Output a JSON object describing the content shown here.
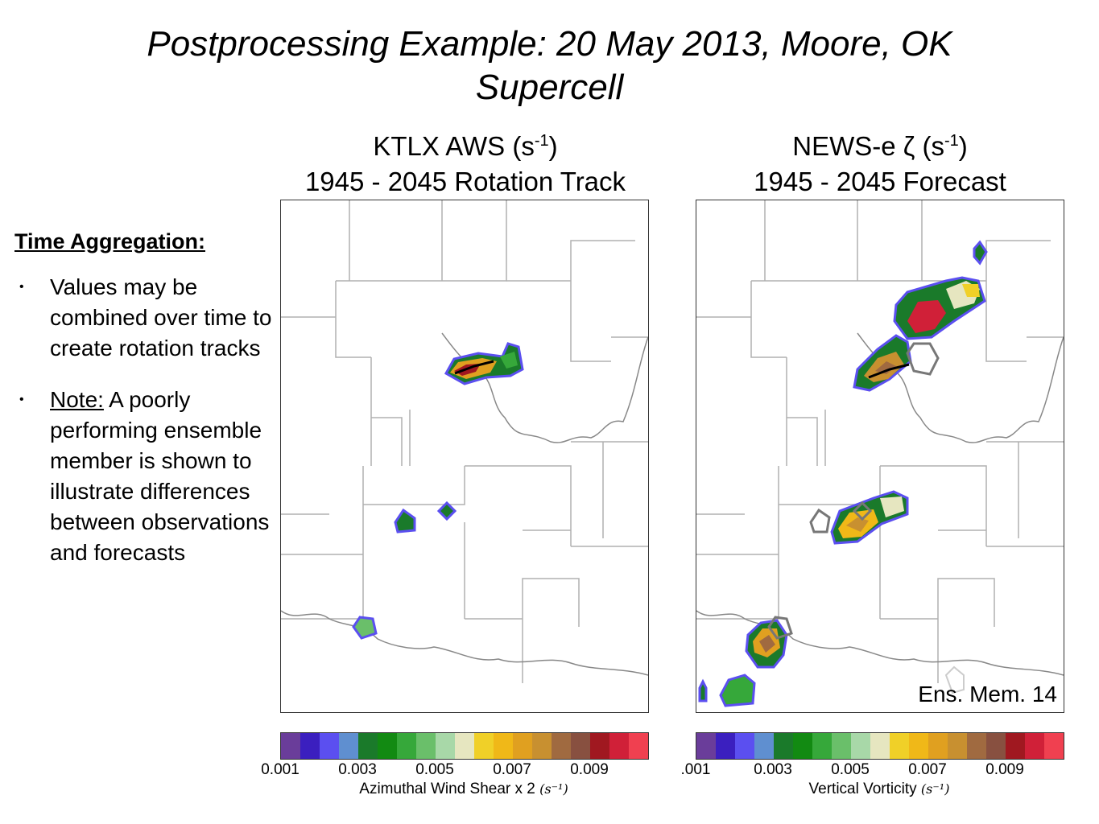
{
  "title": {
    "line1": "Postprocessing Example:  20 May 2013, Moore, OK",
    "line2": "Supercell"
  },
  "left_panel": {
    "heading_main": "KTLX AWS (s",
    "heading_sup": "-1",
    "heading_close": ")",
    "subheading": "1945 - 2045 Rotation Track"
  },
  "right_panel": {
    "heading_main": "NEWS-e ζ (s",
    "heading_sup": "-1",
    "heading_close": ")",
    "subheading": "1945 - 2045 Forecast",
    "ensemble_label": "Ens. Mem. 14"
  },
  "sidebar": {
    "heading": "Time Aggregation:",
    "bullet1": "Values may be combined over time to create rotation tracks",
    "bullet2_label": "Note:",
    "bullet2_text": " A poorly performing ensemble member is shown to illustrate differences between observations and forecasts"
  },
  "colorbar_colors": [
    "#6a3d9a",
    "#3b1fbf",
    "#5b4ff0",
    "#5f8fd0",
    "#1a7a2a",
    "#128a12",
    "#36a83a",
    "#6abf6a",
    "#a8d8a8",
    "#e6e6c0",
    "#f0d028",
    "#f0b818",
    "#e0a020",
    "#c89030",
    "#a06a40",
    "#885040",
    "#a01820",
    "#d02038",
    "#f04050"
  ],
  "left_colorbar": {
    "ticks": [
      "0.001",
      "0.003",
      "0.005",
      "0.007",
      "0.009"
    ],
    "label": "Azimuthal Wind Shear x 2 ",
    "unit": "(s⁻¹)"
  },
  "right_colorbar": {
    "ticks": [
      ".001",
      "0.003",
      "0.005",
      "0.007",
      "0.009"
    ],
    "label": "Vertical Vorticity ",
    "unit": "(s⁻¹)"
  }
}
